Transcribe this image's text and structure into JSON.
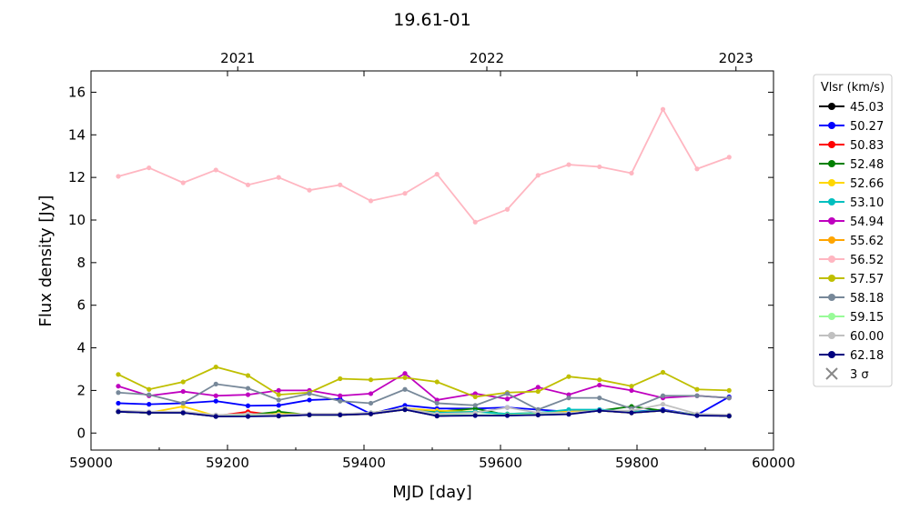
{
  "chart_data": {
    "type": "line",
    "title": "19.61-01",
    "xlabel": "MJD [day]",
    "ylabel": "Flux density [Jy]",
    "xlim": [
      59000,
      60000
    ],
    "ylim": [
      -0.8,
      17
    ],
    "xticks": [
      "59000",
      "59200",
      "59400",
      "59600",
      "59800",
      "60000"
    ],
    "yticks": [
      "0",
      "2",
      "4",
      "6",
      "8",
      "10",
      "12",
      "14",
      "16"
    ],
    "top_axis_ticks": [
      {
        "label": "2021",
        "mjd": 59215
      },
      {
        "label": "2022",
        "mjd": 59580
      },
      {
        "label": "2023",
        "mjd": 59945
      }
    ],
    "grid": false,
    "legend_title": "Vlsr (km/s)",
    "legend_position": "outside-right",
    "x": [
      59040,
      59085,
      59135,
      59183,
      59230,
      59275,
      59320,
      59365,
      59410,
      59460,
      59507,
      59563,
      59610,
      59655,
      59700,
      59745,
      59792,
      59838,
      59888,
      59935
    ],
    "series": [
      {
        "name": "45.03",
        "color": "#000000",
        "values": [
          1.0,
          0.95,
          0.95,
          0.78,
          0.8,
          0.8,
          0.85,
          0.85,
          0.9,
          1.1,
          0.8,
          0.85,
          0.85,
          0.85,
          0.9,
          1.05,
          0.95,
          1.05,
          0.85,
          0.8
        ]
      },
      {
        "name": "50.27",
        "color": "#0000ff",
        "values": [
          1.4,
          1.35,
          1.4,
          1.5,
          1.28,
          1.3,
          1.55,
          1.6,
          0.9,
          1.3,
          1.15,
          1.15,
          1.2,
          1.1,
          1.0,
          1.1,
          1.0,
          1.1,
          0.85,
          1.7
        ]
      },
      {
        "name": "50.83",
        "color": "#ff0000",
        "values": [
          1.0,
          0.95,
          0.95,
          0.8,
          1.0,
          0.82,
          0.85,
          0.85,
          0.9,
          1.1,
          0.85,
          0.85,
          0.85,
          0.9,
          0.9,
          1.05,
          0.95,
          1.05,
          0.85,
          0.8
        ]
      },
      {
        "name": "52.48",
        "color": "#008000",
        "values": [
          1.0,
          0.95,
          0.95,
          0.8,
          0.85,
          1.0,
          0.85,
          0.85,
          0.95,
          1.15,
          1.0,
          1.15,
          0.85,
          0.9,
          0.95,
          1.05,
          1.25,
          1.05,
          0.85,
          0.8
        ]
      },
      {
        "name": "52.66",
        "color": "#ffd700",
        "values": [
          1.05,
          0.95,
          1.25,
          0.8,
          0.85,
          0.9,
          0.88,
          0.88,
          0.95,
          1.15,
          1.05,
          1.0,
          0.9,
          0.95,
          1.0,
          1.05,
          1.0,
          1.05,
          0.85,
          0.8
        ]
      },
      {
        "name": "53.10",
        "color": "#00bfbf",
        "values": [
          1.0,
          0.95,
          0.95,
          0.8,
          0.85,
          0.85,
          0.85,
          0.85,
          0.95,
          1.1,
          0.95,
          1.0,
          0.9,
          0.95,
          1.1,
          1.1,
          1.0,
          1.05,
          0.85,
          0.8
        ]
      },
      {
        "name": "54.94",
        "color": "#bf00bf",
        "values": [
          2.2,
          1.75,
          1.95,
          1.75,
          1.8,
          2.0,
          2.0,
          1.75,
          1.85,
          2.8,
          1.55,
          1.85,
          1.6,
          2.15,
          1.8,
          2.25,
          2.0,
          1.65,
          1.75,
          1.65
        ]
      },
      {
        "name": "55.62",
        "color": "#ffa500",
        "values": [
          1.0,
          0.95,
          0.95,
          0.8,
          0.85,
          0.85,
          0.85,
          0.85,
          0.9,
          1.1,
          0.85,
          0.85,
          0.85,
          0.9,
          0.9,
          1.05,
          0.95,
          1.05,
          0.85,
          0.8
        ]
      },
      {
        "name": "56.52",
        "color": "#ffb6c1",
        "values": [
          12.05,
          12.45,
          11.75,
          12.35,
          11.65,
          12.0,
          11.4,
          11.65,
          10.9,
          11.25,
          12.15,
          9.9,
          10.5,
          12.1,
          12.6,
          12.5,
          12.2,
          15.2,
          12.4,
          12.95
        ]
      },
      {
        "name": "57.57",
        "color": "#bfbf00",
        "values": [
          2.75,
          2.05,
          2.4,
          3.1,
          2.7,
          1.8,
          1.9,
          2.55,
          2.5,
          2.6,
          2.4,
          1.7,
          1.9,
          1.95,
          2.65,
          2.5,
          2.2,
          2.85,
          2.05,
          2.0
        ]
      },
      {
        "name": "58.18",
        "color": "#778899",
        "values": [
          1.9,
          1.8,
          1.4,
          2.3,
          2.1,
          1.55,
          1.85,
          1.5,
          1.4,
          2.05,
          1.4,
          1.3,
          1.85,
          1.1,
          1.65,
          1.65,
          1.15,
          1.75,
          1.75,
          1.65
        ]
      },
      {
        "name": "59.15",
        "color": "#98fb98",
        "values": [
          1.0,
          0.95,
          0.95,
          0.8,
          0.85,
          0.85,
          0.85,
          0.85,
          0.9,
          1.1,
          0.85,
          0.85,
          0.85,
          0.9,
          0.9,
          1.05,
          0.95,
          1.05,
          0.85,
          0.8
        ]
      },
      {
        "name": "60.00",
        "color": "#c0c0c0",
        "values": [
          1.05,
          1.0,
          1.0,
          0.85,
          0.9,
          0.85,
          0.9,
          0.9,
          0.95,
          1.15,
          0.9,
          0.95,
          1.2,
          0.95,
          0.95,
          1.05,
          1.05,
          1.35,
          0.9,
          0.85
        ]
      },
      {
        "name": "62.18",
        "color": "#000080",
        "values": [
          1.0,
          0.95,
          0.95,
          0.78,
          0.78,
          0.8,
          0.85,
          0.85,
          0.9,
          1.1,
          0.8,
          0.82,
          0.82,
          0.85,
          0.88,
          1.05,
          0.95,
          1.05,
          0.82,
          0.8
        ]
      }
    ],
    "sigma_legend": "3 σ"
  }
}
